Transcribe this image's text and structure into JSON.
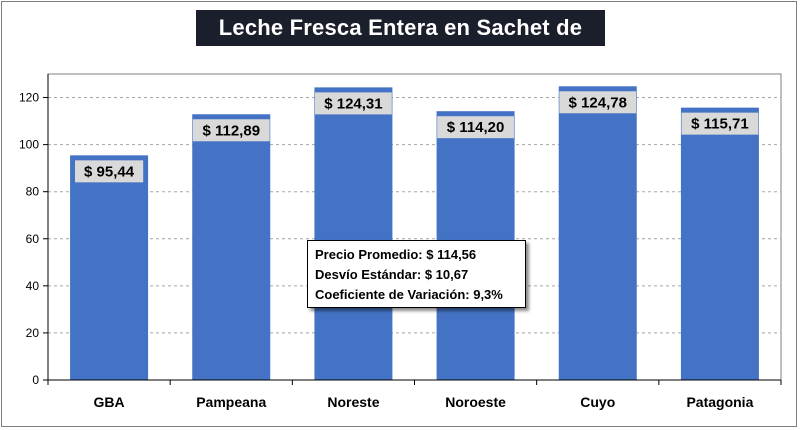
{
  "chart_data": {
    "type": "bar",
    "title": "Leche Fresca Entera en Sachet de litro",
    "categories": [
      "GBA",
      "Pampeana",
      "Noreste",
      "Noroeste",
      "Cuyo",
      "Patagonia"
    ],
    "values": [
      95.44,
      112.89,
      124.31,
      114.2,
      124.78,
      115.71
    ],
    "data_labels": [
      "$ 95,44",
      "$ 112,89",
      "$ 124,31",
      "$ 114,20",
      "$ 124,78",
      "$ 115,71"
    ],
    "yticks": [
      0,
      20,
      40,
      60,
      80,
      100,
      120
    ],
    "ylim": [
      0,
      130
    ],
    "grid": true,
    "bar_color": "#4472c4",
    "grid_color": "#a6a6a6",
    "xlabel": "",
    "ylabel": ""
  },
  "stats_box": {
    "line1": "Precio Promedio: $ 114,56",
    "line2": "Desvío Estándar: $ 10,67",
    "line3": "Coeficiente de Variación: 9,3%"
  }
}
